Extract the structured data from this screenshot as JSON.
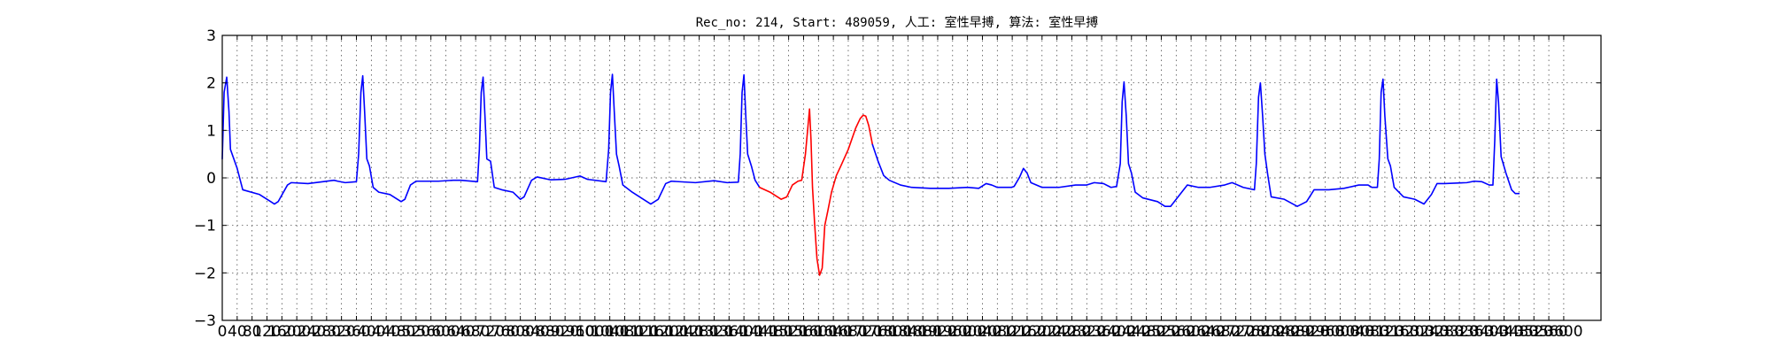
{
  "chart_data": {
    "type": "line",
    "title": "Rec_no: 214, Start: 489059, 人工: 室性早搏, 算法: 室性早搏",
    "xlabel": "",
    "ylabel": "",
    "xlim": [
      0,
      3700
    ],
    "ylim": [
      -3,
      3
    ],
    "grid": true,
    "y_ticks": [
      3,
      2,
      1,
      0,
      -1,
      -2,
      -3
    ],
    "y_tick_labels": [
      "3",
      "2",
      "1",
      "0",
      "−1",
      "−2",
      "−3"
    ],
    "x_ticks": [
      0,
      40,
      80,
      120,
      160,
      200,
      240,
      280,
      320,
      360,
      400,
      440,
      480,
      520,
      560,
      600,
      640,
      680,
      720,
      760,
      800,
      840,
      880,
      920,
      960,
      1000,
      1040,
      1080,
      1120,
      1160,
      1200,
      1240,
      1280,
      1320,
      1360,
      1400,
      1440,
      1480,
      1520,
      1560,
      1600,
      1640,
      1680,
      1720,
      1760,
      1800,
      1840,
      1880,
      1920,
      1960,
      2000,
      2040,
      2080,
      2120,
      2160,
      2200,
      2240,
      2280,
      2320,
      2360,
      2400,
      2440,
      2480,
      2520,
      2560,
      2600,
      2640,
      2680,
      2720,
      2760,
      2800,
      2840,
      2880,
      2920,
      2960,
      3000,
      3040,
      3080,
      3120,
      3160,
      3200,
      3240,
      3280,
      3320,
      3360,
      3400,
      3440,
      3480,
      3520,
      3560,
      3600
    ],
    "series": [
      {
        "color": "#0000ff",
        "segments": [
          [
            [
              0,
              0.4
            ],
            [
              5,
              1.8
            ],
            [
              12,
              2.12
            ],
            [
              18,
              1.4
            ],
            [
              22,
              0.6
            ],
            [
              40,
              0.2
            ],
            [
              55,
              -0.25
            ],
            [
              100,
              -0.35
            ],
            [
              130,
              -0.5
            ],
            [
              140,
              -0.55
            ],
            [
              150,
              -0.5
            ],
            [
              175,
              -0.15
            ],
            [
              185,
              -0.1
            ],
            [
              230,
              -0.12
            ],
            [
              270,
              -0.08
            ],
            [
              300,
              -0.05
            ],
            [
              310,
              -0.07
            ],
            [
              330,
              -0.1
            ],
            [
              360,
              -0.08
            ],
            [
              366,
              0.5
            ],
            [
              372,
              1.8
            ],
            [
              377,
              2.15
            ],
            [
              382,
              1.4
            ],
            [
              388,
              0.4
            ],
            [
              395,
              0.25
            ],
            [
              405,
              -0.2
            ],
            [
              420,
              -0.3
            ],
            [
              450,
              -0.35
            ],
            [
              480,
              -0.5
            ],
            [
              490,
              -0.45
            ],
            [
              505,
              -0.15
            ],
            [
              520,
              -0.07
            ],
            [
              580,
              -0.07
            ],
            [
              620,
              -0.05
            ],
            [
              640,
              -0.05
            ],
            [
              685,
              -0.08
            ],
            [
              690,
              0.6
            ],
            [
              695,
              1.8
            ],
            [
              700,
              2.12
            ],
            [
              705,
              1.3
            ],
            [
              710,
              0.4
            ],
            [
              720,
              0.35
            ],
            [
              730,
              -0.2
            ],
            [
              750,
              -0.25
            ],
            [
              780,
              -0.3
            ],
            [
              800,
              -0.45
            ],
            [
              810,
              -0.4
            ],
            [
              830,
              -0.05
            ],
            [
              845,
              0.02
            ],
            [
              880,
              -0.04
            ],
            [
              920,
              -0.03
            ],
            [
              960,
              0.04
            ],
            [
              980,
              -0.03
            ],
            [
              1030,
              -0.08
            ],
            [
              1037,
              0.6
            ],
            [
              1042,
              1.8
            ],
            [
              1047,
              2.18
            ],
            [
              1052,
              1.4
            ],
            [
              1058,
              0.5
            ],
            [
              1065,
              0.25
            ],
            [
              1075,
              -0.15
            ],
            [
              1100,
              -0.3
            ],
            [
              1130,
              -0.45
            ],
            [
              1150,
              -0.55
            ],
            [
              1170,
              -0.45
            ],
            [
              1190,
              -0.12
            ],
            [
              1205,
              -0.07
            ],
            [
              1270,
              -0.1
            ],
            [
              1320,
              -0.06
            ],
            [
              1355,
              -0.1
            ],
            [
              1385,
              -0.09
            ],
            [
              1390,
              0.5
            ],
            [
              1395,
              1.8
            ],
            [
              1400,
              2.17
            ],
            [
              1405,
              1.3
            ],
            [
              1410,
              0.5
            ],
            [
              1420,
              0.25
            ],
            [
              1430,
              -0.05
            ],
            [
              1442,
              -0.2
            ]
          ],
          [
            [
              2118,
              -0.2
            ],
            [
              2125,
              -0.18
            ],
            [
              2140,
              0.02
            ],
            [
              2150,
              0.2
            ],
            [
              2160,
              0.1
            ],
            [
              2170,
              -0.1
            ],
            [
              2200,
              -0.2
            ],
            [
              2245,
              -0.2
            ],
            [
              2290,
              -0.15
            ],
            [
              2320,
              -0.15
            ],
            [
              2340,
              -0.1
            ],
            [
              2365,
              -0.12
            ],
            [
              2385,
              -0.2
            ],
            [
              2400,
              -0.18
            ],
            [
              2410,
              0.3
            ],
            [
              2415,
              1.6
            ],
            [
              2420,
              2.02
            ],
            [
              2426,
              1.3
            ],
            [
              2432,
              0.3
            ],
            [
              2440,
              0.1
            ],
            [
              2450,
              -0.3
            ],
            [
              2470,
              -0.42
            ],
            [
              2510,
              -0.5
            ],
            [
              2530,
              -0.6
            ],
            [
              2545,
              -0.6
            ],
            [
              2560,
              -0.45
            ],
            [
              2590,
              -0.15
            ],
            [
              2620,
              -0.2
            ],
            [
              2650,
              -0.2
            ],
            [
              2690,
              -0.15
            ],
            [
              2710,
              -0.1
            ],
            [
              2740,
              -0.2
            ],
            [
              2770,
              -0.25
            ],
            [
              2775,
              0.3
            ],
            [
              2781,
              1.7
            ],
            [
              2786,
              2.0
            ],
            [
              2792,
              1.3
            ],
            [
              2798,
              0.5
            ],
            [
              2806,
              0.05
            ],
            [
              2815,
              -0.4
            ],
            [
              2850,
              -0.45
            ],
            [
              2885,
              -0.6
            ],
            [
              2910,
              -0.5
            ],
            [
              2930,
              -0.25
            ],
            [
              2970,
              -0.25
            ],
            [
              3010,
              -0.22
            ],
            [
              3050,
              -0.15
            ],
            [
              3075,
              -0.15
            ],
            [
              3085,
              -0.2
            ],
            [
              3100,
              -0.2
            ],
            [
              3105,
              0.4
            ],
            [
              3110,
              1.8
            ],
            [
              3115,
              2.08
            ],
            [
              3120,
              1.3
            ],
            [
              3128,
              0.4
            ],
            [
              3135,
              0.25
            ],
            [
              3145,
              -0.2
            ],
            [
              3170,
              -0.4
            ],
            [
              3200,
              -0.45
            ],
            [
              3225,
              -0.55
            ],
            [
              3245,
              -0.35
            ],
            [
              3260,
              -0.12
            ],
            [
              3280,
              -0.12
            ],
            [
              3340,
              -0.1
            ],
            [
              3360,
              -0.07
            ],
            [
              3380,
              -0.08
            ],
            [
              3400,
              -0.15
            ],
            [
              3410,
              -0.15
            ],
            [
              3415,
              0.8
            ],
            [
              3420,
              2.08
            ],
            [
              3425,
              1.6
            ],
            [
              3432,
              0.45
            ],
            [
              3445,
              0.1
            ],
            [
              3460,
              -0.25
            ],
            [
              3470,
              -0.33
            ],
            [
              3480,
              -0.33
            ]
          ]
        ]
      },
      {
        "color": "#ff0000",
        "segments": [
          [
            [
              1442,
              -0.2
            ],
            [
              1470,
              -0.3
            ],
            [
              1500,
              -0.45
            ],
            [
              1515,
              -0.4
            ],
            [
              1530,
              -0.15
            ],
            [
              1545,
              -0.07
            ],
            [
              1555,
              -0.05
            ],
            [
              1565,
              0.5
            ],
            [
              1572,
              1.1
            ],
            [
              1576,
              1.45
            ],
            [
              1580,
              0.8
            ],
            [
              1584,
              -0.2
            ],
            [
              1590,
              -1.0
            ],
            [
              1596,
              -1.7
            ],
            [
              1603,
              -2.05
            ],
            [
              1610,
              -1.9
            ],
            [
              1617,
              -1.0
            ],
            [
              1625,
              -0.7
            ],
            [
              1635,
              -0.3
            ],
            [
              1648,
              0.05
            ],
            [
              1660,
              0.25
            ],
            [
              1680,
              0.6
            ],
            [
              1700,
              1.05
            ],
            [
              1712,
              1.25
            ],
            [
              1720,
              1.32
            ],
            [
              1727,
              1.3
            ],
            [
              1735,
              1.1
            ],
            [
              1745,
              0.7
            ]
          ]
        ]
      },
      {
        "color": "#0000ff",
        "segments": [
          [
            [
              1745,
              0.7
            ],
            [
              1760,
              0.35
            ],
            [
              1775,
              0.05
            ],
            [
              1790,
              -0.05
            ],
            [
              1820,
              -0.15
            ],
            [
              1850,
              -0.2
            ],
            [
              1900,
              -0.22
            ],
            [
              1950,
              -0.22
            ],
            [
              2000,
              -0.2
            ],
            [
              2030,
              -0.22
            ],
            [
              2050,
              -0.12
            ],
            [
              2065,
              -0.15
            ],
            [
              2080,
              -0.2
            ],
            [
              2100,
              -0.2
            ],
            [
              2118,
              -0.2
            ]
          ]
        ]
      }
    ]
  }
}
